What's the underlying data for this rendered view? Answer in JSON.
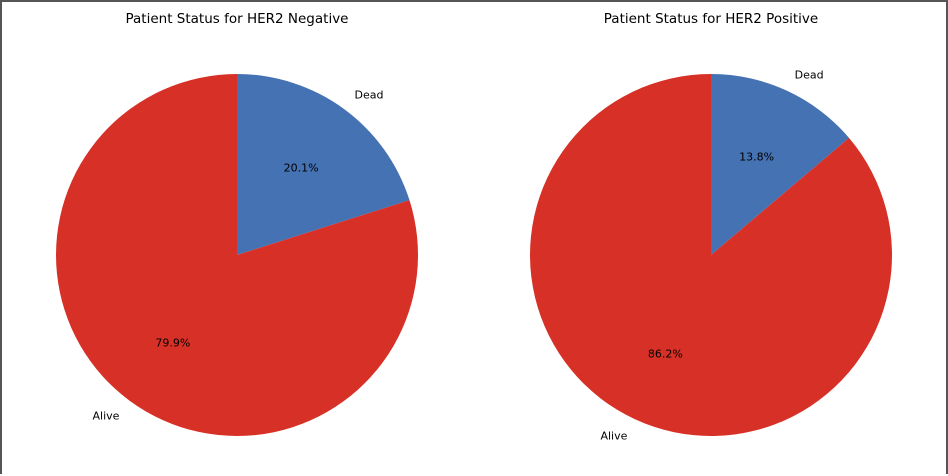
{
  "chart_data": [
    {
      "type": "pie",
      "title": "Patient Status for HER2 Negative",
      "slices": [
        {
          "label": "Dead",
          "value": 20.1,
          "pct_label": "20.1%"
        },
        {
          "label": "Alive",
          "value": 79.9,
          "pct_label": "79.9%"
        }
      ],
      "start_angle_deg": 90,
      "direction": "clockwise"
    },
    {
      "type": "pie",
      "title": "Patient Status for HER2 Positive",
      "slices": [
        {
          "label": "Dead",
          "value": 13.8,
          "pct_label": "13.8%"
        },
        {
          "label": "Alive",
          "value": 86.2,
          "pct_label": "86.2%"
        }
      ],
      "start_angle_deg": 90,
      "direction": "clockwise"
    }
  ],
  "colors": {
    "Dead": "#4572b3",
    "Alive": "#d73027"
  }
}
